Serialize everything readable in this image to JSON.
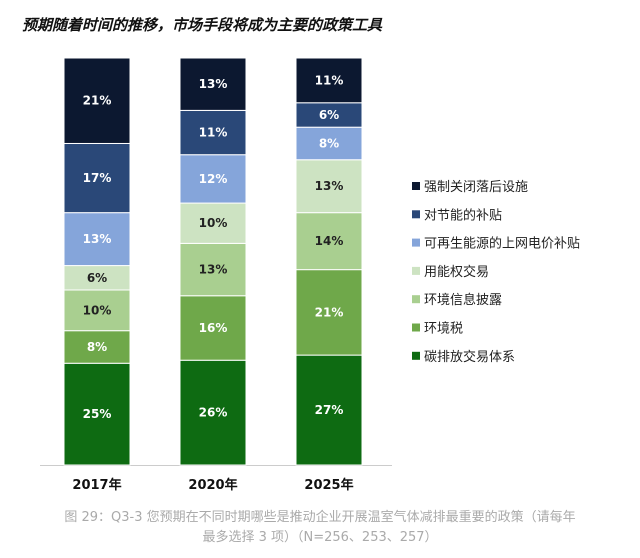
{
  "chart_data": {
    "type": "bar",
    "stacked": true,
    "title": "预期随着时间的推移，市场手段将成为主要的政策工具",
    "categories": [
      "2017年",
      "2020年",
      "2025年"
    ],
    "series": [
      {
        "name": "碳排放交易体系",
        "color": "#0e6b12",
        "values": [
          25,
          26,
          27
        ]
      },
      {
        "name": "环境税",
        "color": "#6fa84a",
        "values": [
          8,
          16,
          21
        ]
      },
      {
        "name": "环境信息披露",
        "color": "#a9cf90",
        "values": [
          10,
          13,
          14
        ]
      },
      {
        "name": "用能权交易",
        "color": "#cde3c2",
        "values": [
          6,
          10,
          13
        ]
      },
      {
        "name": "可再生能源的上网电价补贴",
        "color": "#85a5da",
        "values": [
          13,
          12,
          8
        ]
      },
      {
        "name": "对节能的补贴",
        "color": "#2a4878",
        "values": [
          17,
          11,
          6
        ]
      },
      {
        "name": "强制关闭落后设施",
        "color": "#0c1830",
        "values": [
          21,
          13,
          11
        ]
      }
    ],
    "value_suffix": "%",
    "legend_position": "right",
    "grid": false
  },
  "caption": {
    "line1": "图 29：Q3-3 您预期在不同时期哪些是推动企业开展温室气体减排最重要的政策（请每年",
    "line2": "最多选择 3 项）（N=256、253、257）"
  }
}
